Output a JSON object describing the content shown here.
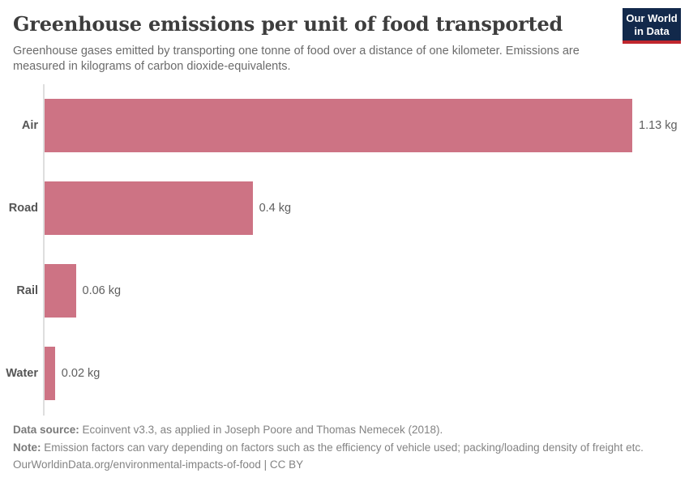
{
  "header": {
    "title": "Greenhouse emissions per unit of food transported",
    "subtitle": "Greenhouse gases emitted by transporting one tonne of food over a distance of one kilometer. Emissions are measured in kilograms of carbon dioxide-equivalents.",
    "logo": {
      "line1": "Our World",
      "line2": "in Data"
    }
  },
  "chart_data": {
    "type": "bar",
    "orientation": "horizontal",
    "title": "Greenhouse emissions per unit of food transported",
    "categories": [
      "Air",
      "Road",
      "Rail",
      "Water"
    ],
    "values": [
      1.13,
      0.4,
      0.06,
      0.02
    ],
    "value_labels": [
      "1.13 kg",
      "0.4 kg",
      "0.06 kg",
      "0.02 kg"
    ],
    "unit": "kg",
    "xlabel": "",
    "ylabel": "",
    "xlim": [
      0,
      1.13
    ],
    "grid": false,
    "legend": "none",
    "bar_color": "#cd7384"
  },
  "footer": {
    "data_source_label": "Data source:",
    "data_source_text": " Ecoinvent v3.3, as applied in Joseph Poore and Thomas Nemecek (2018).",
    "note_label": "Note:",
    "note_text": " Emission factors can vary depending on factors such as the efficiency of vehicle used; packing/loading density of freight etc.",
    "url_line": "OurWorldinData.org/environmental-impacts-of-food | CC BY"
  },
  "colors": {
    "bar": "#cd7384",
    "logo_background": "#12294b",
    "logo_stripe": "#c0262e",
    "axis_line": "#dedede",
    "title_text": "#3d3d3d",
    "subtitle_text": "#6b6b6b",
    "footer_text": "#838383"
  }
}
